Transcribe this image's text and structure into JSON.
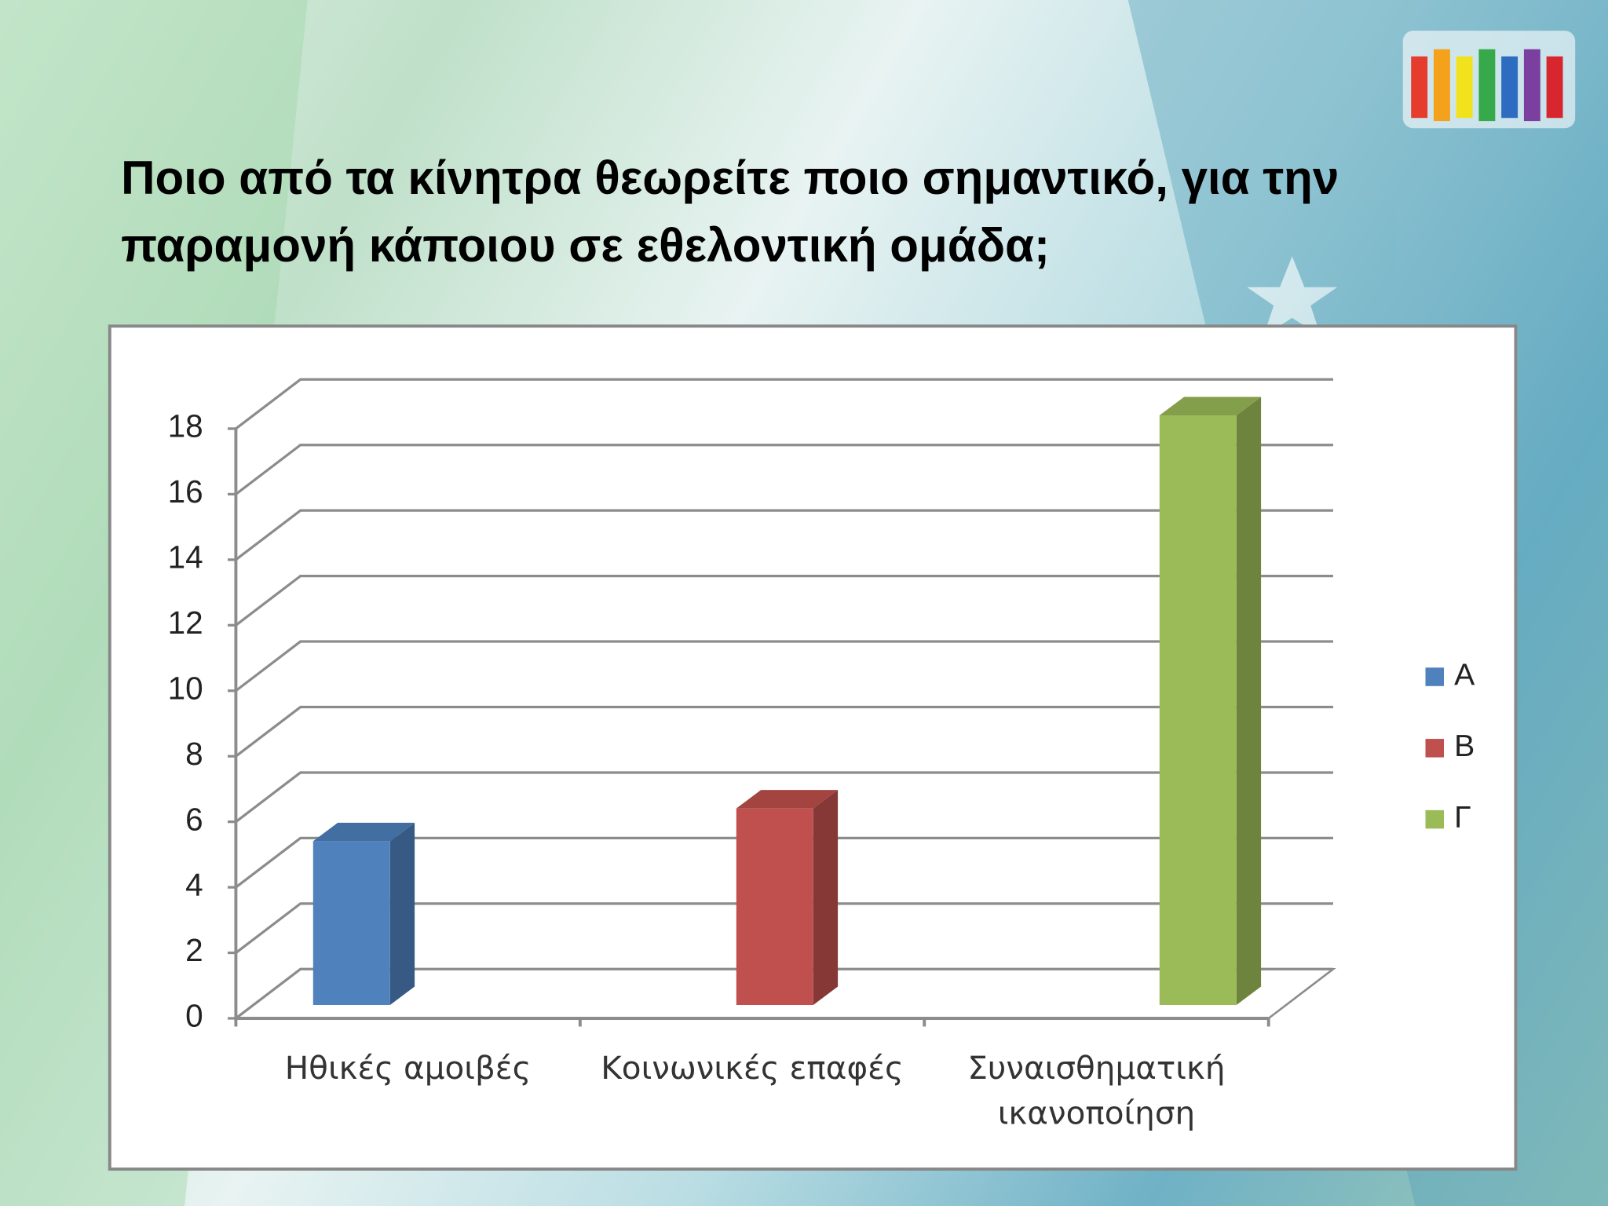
{
  "chart_data": {
    "type": "bar3d",
    "title": "Ποιο από τα κίνητρα θεωρείτε ποιο σημαντικό, για την παραμονή κάποιου σε εθελοντική ομάδα;",
    "categories": [
      "Ηθικές αμοιβές",
      "Κοινωνικές επαφές",
      "Συναισθηματική ικανοποίηση"
    ],
    "series": [
      {
        "name": "Α",
        "color": "#4f81bd",
        "values": [
          5,
          null,
          null
        ]
      },
      {
        "name": "Β",
        "color": "#c0504d",
        "values": [
          null,
          6,
          null
        ]
      },
      {
        "name": "Γ",
        "color": "#9bbb59",
        "values": [
          null,
          null,
          18
        ]
      }
    ],
    "ylim": [
      0,
      18
    ],
    "yticks": [
      0,
      2,
      4,
      6,
      8,
      10,
      12,
      14,
      16,
      18
    ],
    "grid": true,
    "legend": "right"
  }
}
